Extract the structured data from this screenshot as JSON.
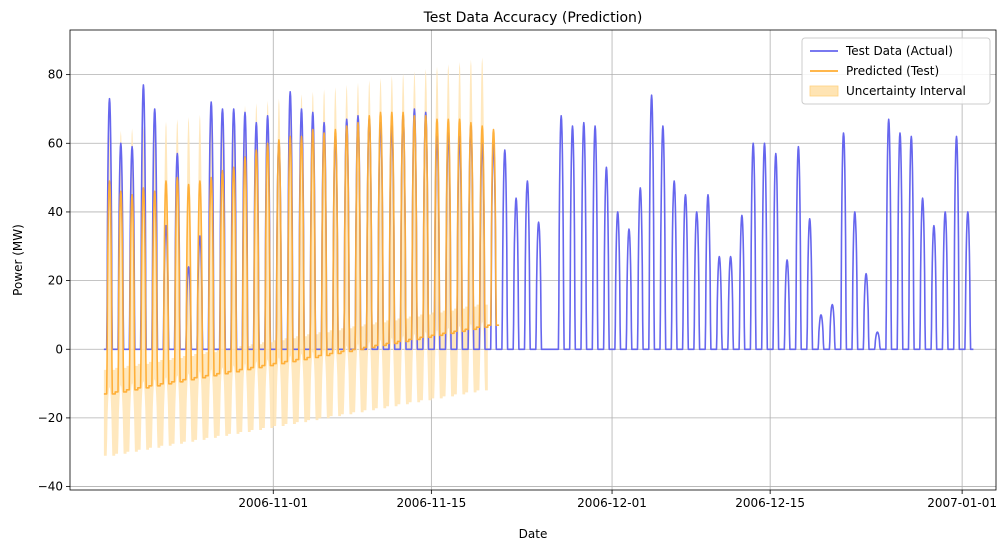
{
  "chart_data": {
    "type": "line",
    "title": "Test Data Accuracy (Prediction)",
    "xlabel": "Date",
    "ylabel": "Power (MW)",
    "xlim": [
      "2006-10-14",
      "2007-01-04"
    ],
    "ylim": [
      -41,
      93
    ],
    "x_ticks": [
      "2006-11-01",
      "2006-11-15",
      "2006-12-01",
      "2006-12-15",
      "2007-01-01"
    ],
    "y_ticks": [
      -40,
      -20,
      0,
      20,
      40,
      60,
      80
    ],
    "grid": true,
    "legend_position": "top-right",
    "colors": {
      "actual": "#6666ee",
      "predicted": "#ffad33",
      "uncertainty": "#ffe4b3"
    },
    "series": [
      {
        "name": "Test Data (Actual)",
        "kind": "line",
        "x_start": "2006-10-17",
        "x_end": "2007-01-01",
        "note_daily_peaks_start": "2006-10-17",
        "daily_peaks": [
          73,
          60,
          59,
          77,
          70,
          36,
          57,
          24,
          33,
          72,
          70,
          70,
          69,
          66,
          68,
          60,
          75,
          70,
          69,
          66,
          62,
          67,
          68,
          67,
          66,
          65,
          68,
          70,
          69,
          62,
          63,
          62,
          65,
          60,
          60,
          58,
          44,
          49,
          37,
          0,
          68,
          65,
          66,
          65,
          53,
          40,
          35,
          47,
          74,
          65,
          49,
          45,
          40,
          45,
          27,
          27,
          39,
          60,
          60,
          57,
          26,
          59,
          38,
          10,
          13,
          63,
          40,
          22,
          5,
          67,
          63,
          62,
          44,
          36,
          40,
          62,
          40
        ]
      },
      {
        "name": "Predicted (Test)",
        "kind": "line",
        "x_start": "2006-10-17",
        "x_end": "2006-11-20",
        "night_baseline_start": -13,
        "night_baseline_end": 7,
        "daily_peaks": [
          49,
          46,
          45,
          47,
          46,
          49,
          50,
          48,
          49,
          50,
          52,
          53,
          56,
          58,
          60,
          61,
          62,
          62,
          64,
          63,
          64,
          65,
          66,
          68,
          69,
          69,
          69,
          68,
          68,
          67,
          67,
          67,
          66,
          65,
          64
        ]
      },
      {
        "name": "Uncertainty Interval",
        "kind": "band",
        "x_start": "2006-10-17",
        "x_end": "2006-11-20",
        "lower_start": -31,
        "lower_end": -12,
        "upper_start": 63,
        "upper_end": 85
      }
    ]
  }
}
